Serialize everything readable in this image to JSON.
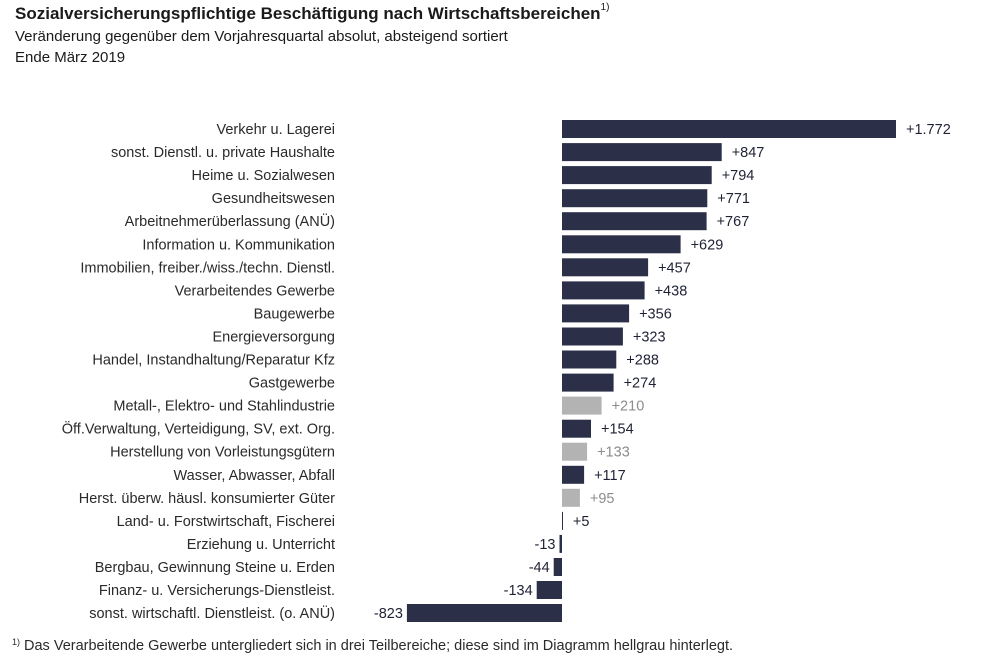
{
  "header": {
    "title": "Sozialversicherungspflichtige Beschäftigung nach Wirtschaftsbereichen",
    "title_note_marker": "1)",
    "subtitle": "Veränderung gegenüber dem Vorjahresquartal absolut, absteigend sortiert",
    "date": "Ende März 2019"
  },
  "footnote": {
    "marker": "1)",
    "text": "Das Verarbeitende Gewerbe  untergliedert sich in drei  Teilbereiche; diese sind im Diagramm hellgrau hinterlegt."
  },
  "colors": {
    "bar_main": "#2b3048",
    "bar_sub": "#b3b3b3",
    "label_main": "#1f2235",
    "label_sub": "#8c8c8c"
  },
  "chart_data": {
    "type": "bar",
    "orientation": "horizontal",
    "title": "Sozialversicherungspflichtige Beschäftigung nach Wirtschaftsbereichen",
    "xlabel": "",
    "ylabel": "",
    "grid": false,
    "xlim": [
      -823,
      1772
    ],
    "categories": [
      "Verkehr u. Lagerei",
      "sonst. Dienstl. u. private Haushalte",
      "Heime u. Sozialwesen",
      "Gesundheitswesen",
      "Arbeitnehmerüberlassung (ANÜ)",
      "Information u. Kommunikation",
      "Immobilien, freiber./wiss./techn. Dienstl.",
      "Verarbeitendes Gewerbe",
      "Baugewerbe",
      "Energieversorgung",
      "Handel, Instandhaltung/Reparatur Kfz",
      "Gastgewerbe",
      "Metall-, Elektro- und Stahlindustrie",
      "Öff.Verwaltung, Verteidigung, SV, ext. Org.",
      "Herstellung von Vorleistungsgütern",
      "Wasser, Abwasser, Abfall",
      "Herst. überw. häusl. konsumierter Güter",
      "Land- u. Forstwirtschaft, Fischerei",
      "Erziehung u. Unterricht",
      "Bergbau, Gewinnung Steine u. Erden",
      "Finanz- u. Versicherungs-Dienstleist.",
      "sonst. wirtschaftl. Dienstleist. (o. ANÜ)"
    ],
    "values": [
      1772,
      847,
      794,
      771,
      767,
      629,
      457,
      438,
      356,
      323,
      288,
      274,
      210,
      154,
      133,
      117,
      95,
      5,
      -13,
      -44,
      -134,
      -823
    ],
    "value_labels": [
      "+1.772",
      "+847",
      "+794",
      "+771",
      "+767",
      "+629",
      "+457",
      "+438",
      "+356",
      "+323",
      "+288",
      "+274",
      "+210",
      "+154",
      "+133",
      "+117",
      "+95",
      "+5",
      "-13",
      "-44",
      "-134",
      "-823"
    ],
    "subcategory": [
      false,
      false,
      false,
      false,
      false,
      false,
      false,
      false,
      false,
      false,
      false,
      false,
      true,
      false,
      true,
      false,
      true,
      false,
      false,
      false,
      false,
      false
    ]
  }
}
